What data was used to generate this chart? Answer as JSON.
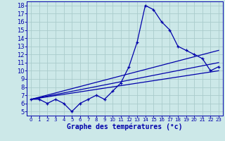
{
  "xlabel": "Graphe des températures (°c)",
  "bg_color": "#cce8e8",
  "grid_color": "#aacccc",
  "line_color": "#0000aa",
  "spine_color": "#0000aa",
  "xlim": [
    -0.5,
    23.5
  ],
  "ylim": [
    4.5,
    18.5
  ],
  "yticks": [
    5,
    6,
    7,
    8,
    9,
    10,
    11,
    12,
    13,
    14,
    15,
    16,
    17,
    18
  ],
  "xticks": [
    0,
    1,
    2,
    3,
    4,
    5,
    6,
    7,
    8,
    9,
    10,
    11,
    12,
    13,
    14,
    15,
    16,
    17,
    18,
    19,
    20,
    21,
    22,
    23
  ],
  "main_series": {
    "x": [
      0,
      1,
      2,
      3,
      4,
      5,
      6,
      7,
      8,
      9,
      10,
      11,
      12,
      13,
      14,
      15,
      16,
      17,
      18,
      19,
      20,
      21,
      22,
      23
    ],
    "y": [
      6.5,
      6.5,
      6.0,
      6.5,
      6.0,
      5.0,
      6.0,
      6.5,
      7.0,
      6.5,
      7.5,
      8.5,
      10.5,
      13.5,
      18.0,
      17.5,
      16.0,
      15.0,
      13.0,
      12.5,
      12.0,
      11.5,
      10.0,
      10.5
    ]
  },
  "trend_lines": [
    {
      "x": [
        0,
        23
      ],
      "y": [
        6.5,
        10.0
      ]
    },
    {
      "x": [
        0,
        23
      ],
      "y": [
        6.5,
        11.0
      ]
    },
    {
      "x": [
        0,
        23
      ],
      "y": [
        6.5,
        12.5
      ]
    }
  ],
  "xlabel_fontsize": 7,
  "tick_fontsize_x": 5,
  "tick_fontsize_y": 6
}
